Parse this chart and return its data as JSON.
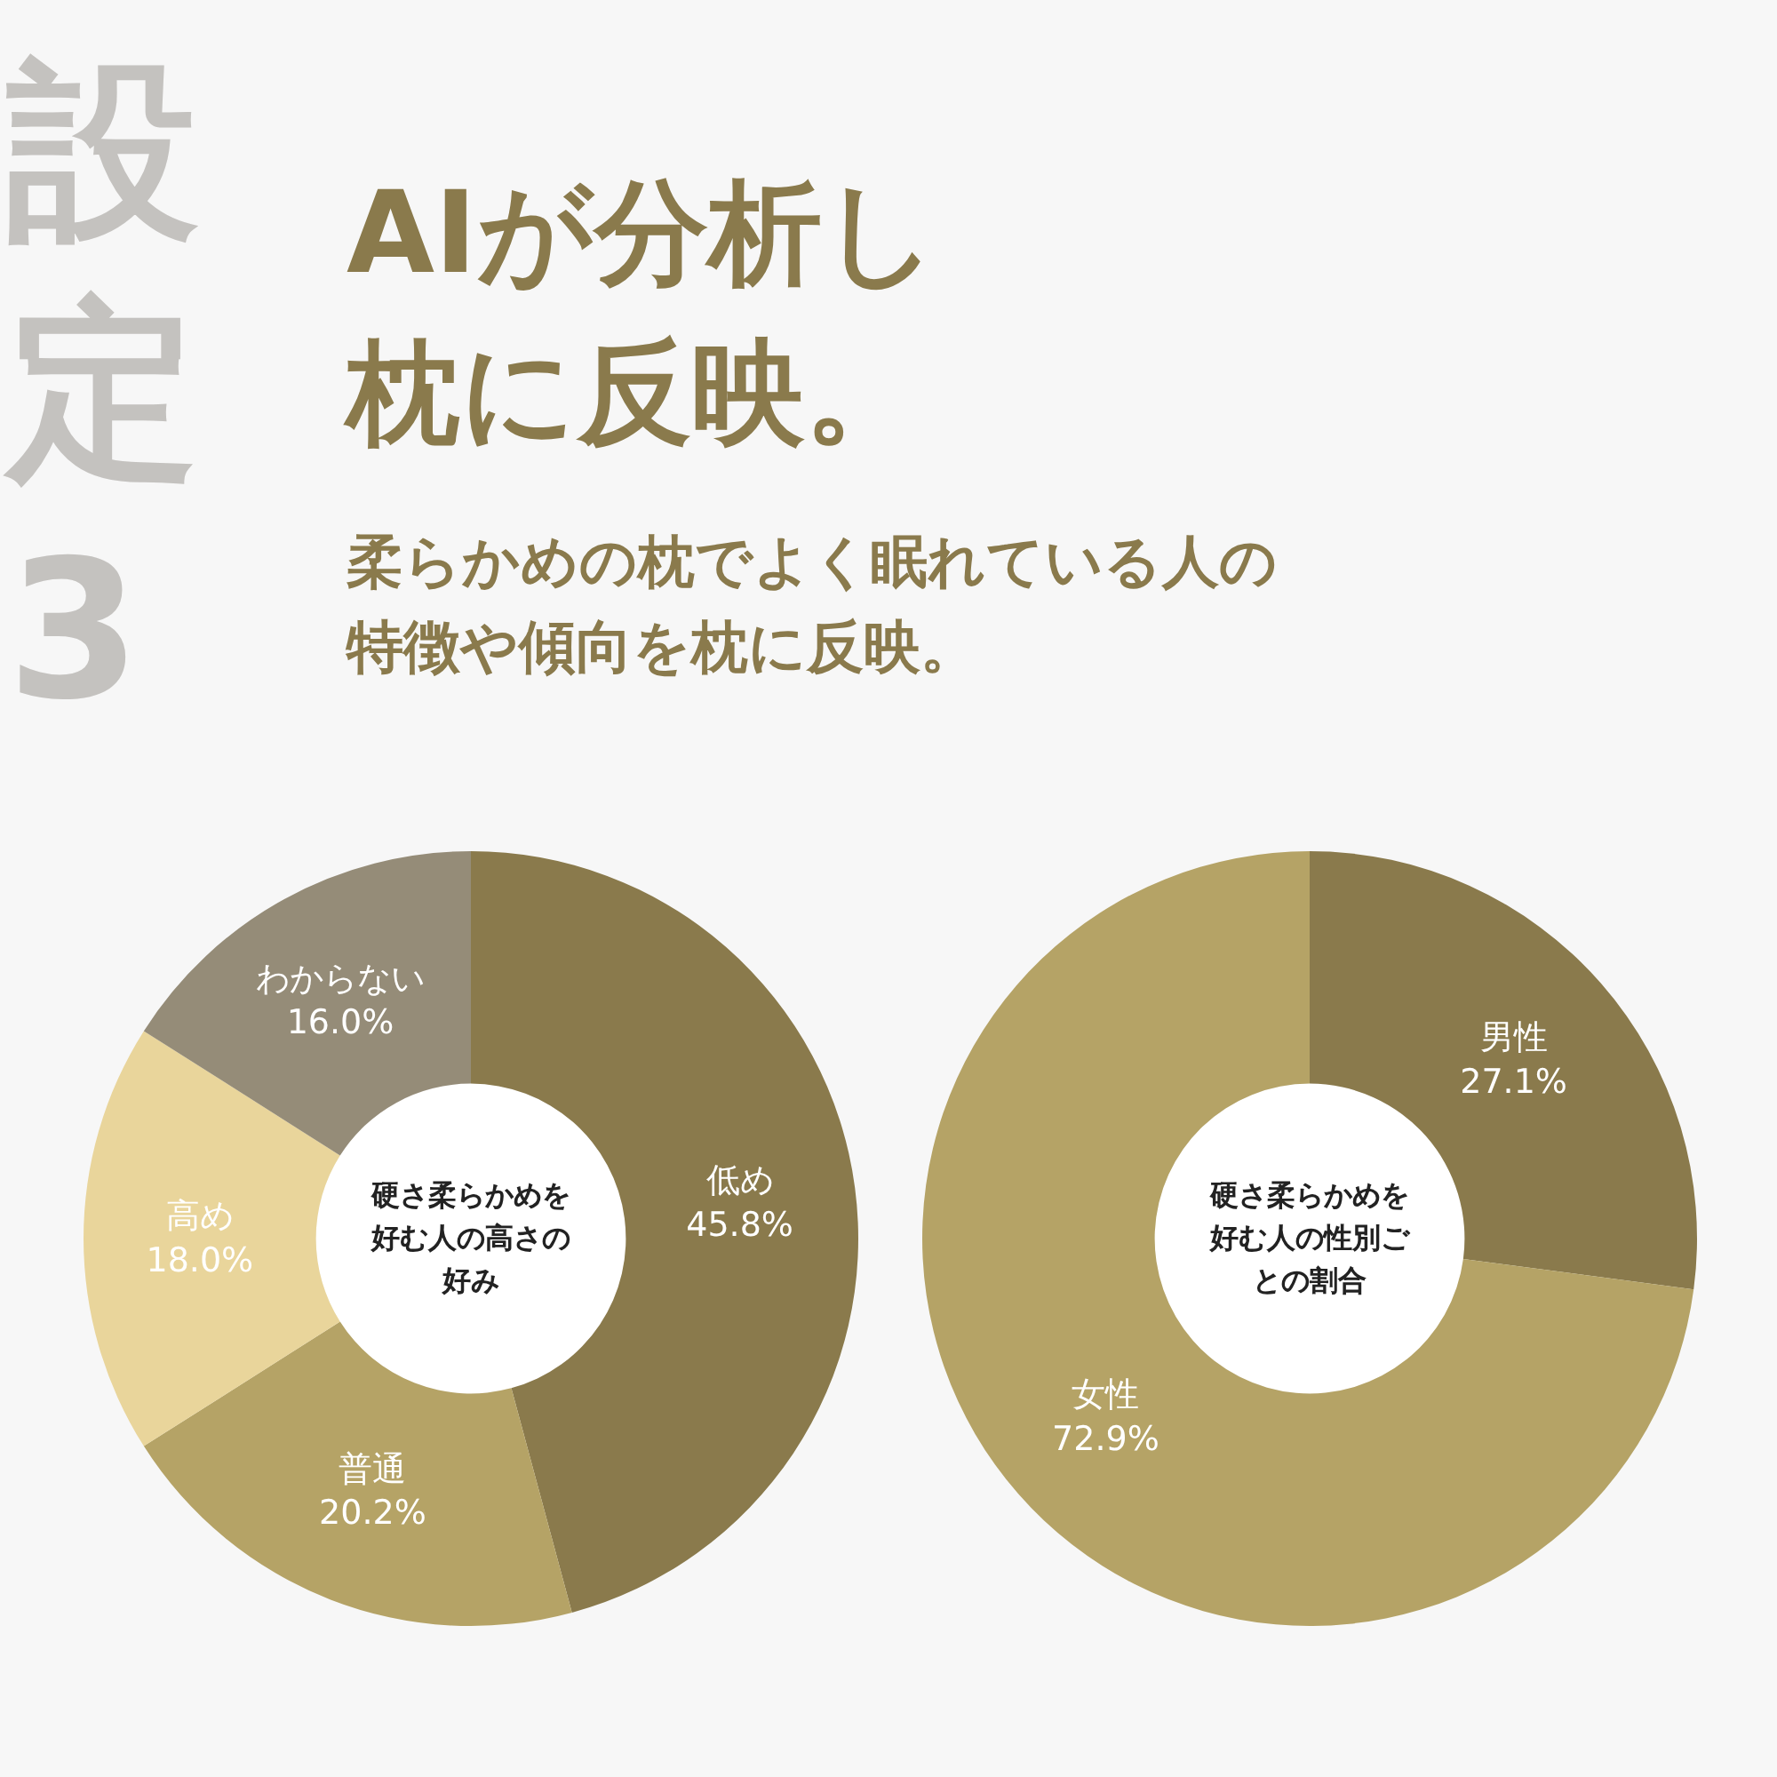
{
  "chart_data": [
    {
      "type": "donut",
      "title": "AIが分析し枕に反映。",
      "subtitle": "柔らかめの枕でよく眠れている人の特徴や傾向を枕に反映。",
      "annotations": [
        "設定3",
        "硬さ柔らかめを好む人の高さの好み"
      ],
      "categories": [
        "低め",
        "普通",
        "高め",
        "わからない"
      ],
      "values": [
        45.8,
        20.2,
        18.0,
        16.0
      ],
      "value_labels": [
        "45.8%",
        "20.2%",
        "18.0%",
        "16.0%"
      ],
      "colors": [
        "#8a7a4c",
        "#b5a366",
        "#e9d59b",
        "#958c78"
      ]
    },
    {
      "type": "donut",
      "annotations": [
        "硬さ柔らかめを好む人の性別ごとの割合"
      ],
      "categories": [
        "男性",
        "女性"
      ],
      "values": [
        27.1,
        72.9
      ],
      "value_labels": [
        "27.1%",
        "72.9%"
      ],
      "colors": [
        "#8a7a4c",
        "#b5a366"
      ]
    }
  ]
}
